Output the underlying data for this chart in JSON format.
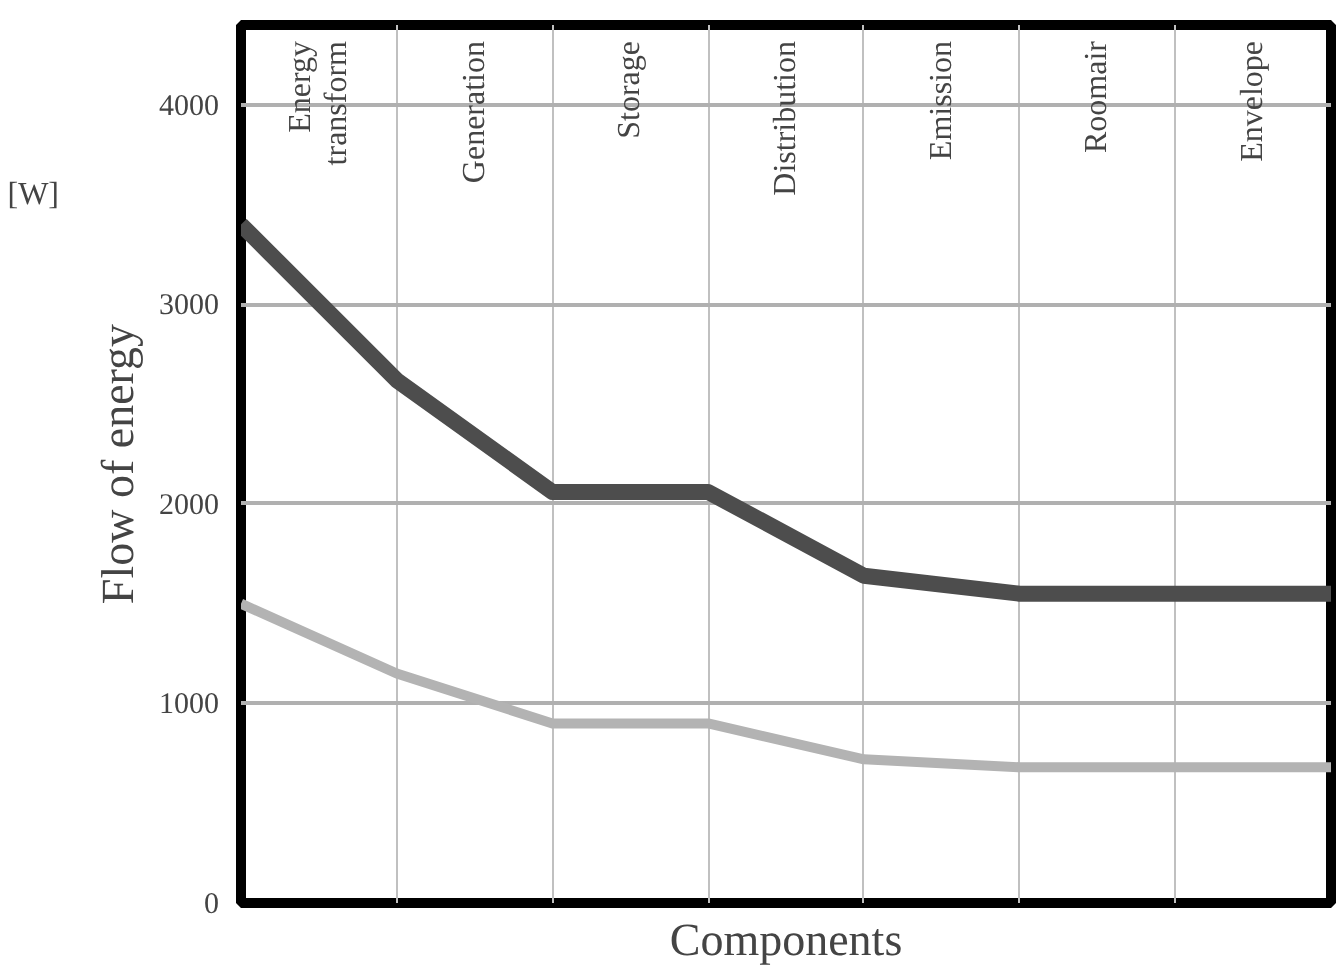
{
  "chart_data": {
    "type": "line",
    "xlabel": "Components",
    "ylabel": "Flow of energy",
    "categories": [
      null,
      null,
      null,
      null,
      null,
      null,
      null,
      null
    ],
    "ylim": [
      0,
      4400
    ],
    "yticks": [
      0,
      1000,
      2000,
      3000,
      4000
    ],
    "series": [
      {
        "color": "#4d4d4d",
        "values": [
          3400,
          2620,
          2060,
          2060,
          1640,
          1550,
          1550,
          1550
        ]
      },
      {
        "color": "#b3b3b3",
        "values": [
          1500,
          1150,
          900,
          900,
          720,
          680,
          680,
          680
        ]
      }
    ],
    "annotations": [
      "[W]",
      "Energy\ntransform",
      "Generation",
      "Storage",
      "Distribution",
      "Emission",
      "Roomair",
      "Envelope"
    ],
    "grid": true,
    "marker": "none",
    "line_style": "solid"
  }
}
